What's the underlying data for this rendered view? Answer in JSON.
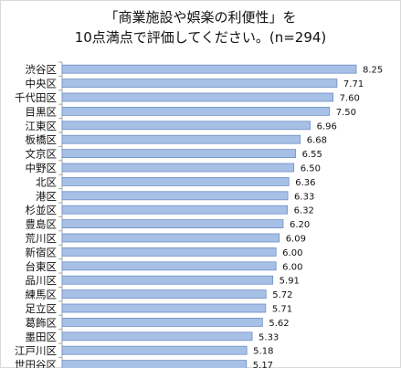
{
  "chart_data": {
    "type": "bar",
    "orientation": "horizontal",
    "title_lines": [
      "「商業施設や娯楽の利便性」を",
      "10点満点で評価してください。(n=294)"
    ],
    "categories": [
      "渋谷区",
      "中央区",
      "千代田区",
      "目黒区",
      "江東区",
      "板橋区",
      "文京区",
      "中野区",
      "北区",
      "港区",
      "杉並区",
      "豊島区",
      "荒川区",
      "新宿区",
      "台東区",
      "品川区",
      "練馬区",
      "足立区",
      "葛飾区",
      "墨田区",
      "江戸川区",
      "世田谷区"
    ],
    "values": [
      8.25,
      7.71,
      7.6,
      7.5,
      6.96,
      6.68,
      6.55,
      6.5,
      6.36,
      6.33,
      6.32,
      6.2,
      6.09,
      6.0,
      6.0,
      5.91,
      5.72,
      5.71,
      5.62,
      5.33,
      5.18,
      5.17
    ],
    "value_labels": [
      "8.25",
      "7.71",
      "7.60",
      "7.50",
      "6.96",
      "6.68",
      "6.55",
      "6.50",
      "6.36",
      "6.33",
      "6.32",
      "6.20",
      "6.09",
      "6.00",
      "6.00",
      "5.91",
      "5.72",
      "5.71",
      "5.62",
      "5.33",
      "5.18",
      "5.17"
    ],
    "xlim": [
      0,
      8.25
    ],
    "grid": false,
    "legend": "none",
    "colors": {
      "bar_fill": "#a7c0e6",
      "bar_stroke": "#6f8fc4",
      "axis": "#a6a6a6"
    }
  }
}
